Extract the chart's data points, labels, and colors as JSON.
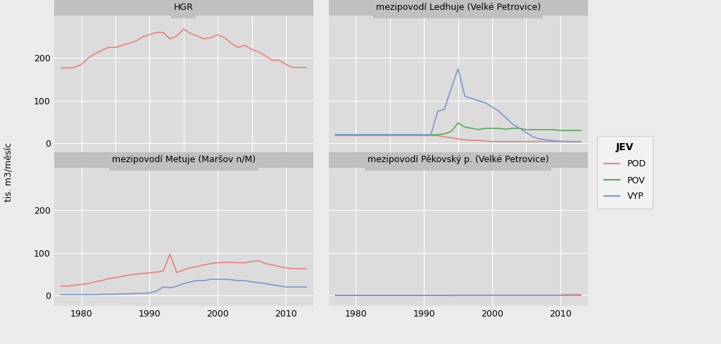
{
  "panel_titles": [
    "HGR",
    "mezipovodí Ledhuje (Velké Petrovice)",
    "mezipovodí Metuje (Maršov n/M)",
    "mezipovodí Pěkovský p. (Velké Petrovice)"
  ],
  "ylabel": "tis. m3/měsíc",
  "legend_title": "JEV",
  "legend_labels": [
    "POD",
    "POV",
    "VYP"
  ],
  "colors": {
    "POD": "#E88080",
    "POV": "#55AA55",
    "VYP": "#7799CC"
  },
  "bg_color": "#EBEBEB",
  "panel_bg": "#DCDCDC",
  "strip_bg": "#C0C0C0",
  "grid_color": "#FFFFFF",
  "xlim": [
    1976,
    2014
  ],
  "xticks": [
    1980,
    1990,
    2000,
    2010
  ],
  "panels": {
    "HGR": {
      "ylim": [
        -25,
        300
      ],
      "yticks": [
        0,
        100,
        200
      ],
      "POD": {
        "x": [
          1977,
          1978,
          1979,
          1980,
          1981,
          1982,
          1983,
          1984,
          1985,
          1986,
          1987,
          1988,
          1989,
          1990,
          1991,
          1992,
          1993,
          1994,
          1995,
          1996,
          1997,
          1998,
          1999,
          2000,
          2001,
          2002,
          2003,
          2004,
          2005,
          2006,
          2007,
          2008,
          2009,
          2010,
          2011,
          2012,
          2013
        ],
        "y": [
          177,
          177,
          178,
          185,
          200,
          210,
          218,
          225,
          225,
          230,
          235,
          240,
          250,
          255,
          260,
          260,
          245,
          252,
          268,
          258,
          252,
          245,
          248,
          255,
          248,
          235,
          225,
          230,
          220,
          215,
          205,
          195,
          195,
          185,
          178,
          178,
          178
        ]
      }
    },
    "Ledhuje": {
      "ylim": [
        -25,
        300
      ],
      "yticks": [
        0,
        100,
        200
      ],
      "POD": {
        "x": [
          1977,
          1978,
          1979,
          1980,
          1981,
          1982,
          1983,
          1984,
          1985,
          1986,
          1987,
          1988,
          1989,
          1990,
          1991,
          1992,
          1993,
          1994,
          1995,
          1996,
          1997,
          1998,
          1999,
          2000,
          2001,
          2002,
          2003,
          2004,
          2005,
          2006,
          2007,
          2008,
          2009,
          2010,
          2011,
          2012,
          2013
        ],
        "y": [
          18,
          18,
          18,
          18,
          18,
          18,
          18,
          18,
          18,
          18,
          18,
          18,
          18,
          18,
          18,
          18,
          15,
          13,
          10,
          8,
          7,
          7,
          5,
          4,
          4,
          4,
          4,
          4,
          4,
          4,
          4,
          4,
          4,
          4,
          4,
          4,
          4
        ]
      },
      "POV": {
        "x": [
          1977,
          1978,
          1979,
          1980,
          1981,
          1982,
          1983,
          1984,
          1985,
          1986,
          1987,
          1988,
          1989,
          1990,
          1991,
          1992,
          1993,
          1994,
          1995,
          1996,
          1997,
          1998,
          1999,
          2000,
          2001,
          2002,
          2003,
          2004,
          2005,
          2006,
          2007,
          2008,
          2009,
          2010,
          2011,
          2012,
          2013
        ],
        "y": [
          20,
          20,
          20,
          20,
          20,
          20,
          20,
          20,
          20,
          20,
          20,
          20,
          20,
          20,
          20,
          20,
          22,
          28,
          48,
          38,
          35,
          32,
          35,
          35,
          35,
          33,
          35,
          35,
          32,
          32,
          32,
          32,
          32,
          30,
          30,
          30,
          30
        ]
      },
      "VYP": {
        "x": [
          1977,
          1978,
          1979,
          1980,
          1981,
          1982,
          1983,
          1984,
          1985,
          1986,
          1987,
          1988,
          1989,
          1990,
          1991,
          1992,
          1993,
          1994,
          1995,
          1996,
          1997,
          1998,
          1999,
          2000,
          2001,
          2002,
          2003,
          2004,
          2005,
          2006,
          2007,
          2008,
          2009,
          2010,
          2011,
          2012,
          2013
        ],
        "y": [
          20,
          20,
          20,
          20,
          20,
          20,
          20,
          20,
          20,
          20,
          20,
          20,
          20,
          20,
          20,
          75,
          80,
          130,
          175,
          110,
          105,
          100,
          95,
          85,
          75,
          60,
          45,
          35,
          25,
          15,
          10,
          8,
          6,
          5,
          4,
          4,
          4
        ]
      }
    },
    "Metuje": {
      "ylim": [
        -25,
        300
      ],
      "yticks": [
        0,
        100,
        200
      ],
      "POD": {
        "x": [
          1977,
          1978,
          1979,
          1980,
          1981,
          1982,
          1983,
          1984,
          1985,
          1986,
          1987,
          1988,
          1989,
          1990,
          1991,
          1992,
          1993,
          1994,
          1995,
          1996,
          1997,
          1998,
          1999,
          2000,
          2001,
          2002,
          2003,
          2004,
          2005,
          2006,
          2007,
          2008,
          2009,
          2010,
          2011,
          2012,
          2013
        ],
        "y": [
          22,
          22,
          24,
          26,
          28,
          32,
          35,
          40,
          42,
          45,
          48,
          50,
          52,
          53,
          55,
          57,
          97,
          54,
          60,
          65,
          68,
          72,
          75,
          77,
          78,
          78,
          77,
          77,
          80,
          82,
          75,
          72,
          68,
          65,
          63,
          63,
          63
        ]
      },
      "VYP": {
        "x": [
          1977,
          1978,
          1979,
          1980,
          1981,
          1982,
          1983,
          1984,
          1985,
          1986,
          1987,
          1988,
          1989,
          1990,
          1991,
          1992,
          1993,
          1994,
          1995,
          1996,
          1997,
          1998,
          1999,
          2000,
          2001,
          2002,
          2003,
          2004,
          2005,
          2006,
          2007,
          2008,
          2009,
          2010,
          2011,
          2012,
          2013
        ],
        "y": [
          2,
          2,
          2,
          2,
          2,
          2,
          3,
          3,
          3,
          4,
          4,
          5,
          5,
          6,
          10,
          20,
          18,
          22,
          28,
          32,
          35,
          35,
          38,
          38,
          38,
          37,
          35,
          35,
          32,
          30,
          28,
          25,
          23,
          20,
          20,
          20,
          20
        ]
      }
    },
    "Pekovsky": {
      "ylim": [
        -25,
        300
      ],
      "yticks": [
        0,
        100,
        200
      ],
      "POD": {
        "x": [
          1977,
          1978,
          1979,
          1980,
          1981,
          1982,
          1983,
          1984,
          1985,
          1986,
          1987,
          1988,
          1989,
          1990,
          1991,
          1992,
          1993,
          1994,
          1995,
          1996,
          1997,
          1998,
          1999,
          2000,
          2001,
          2002,
          2003,
          2004,
          2005,
          2006,
          2007,
          2008,
          2009,
          2010,
          2011,
          2012,
          2013
        ],
        "y": [
          0.5,
          0.5,
          0.5,
          0.5,
          0.5,
          0.5,
          0.5,
          0.5,
          0.5,
          0.5,
          0.5,
          0.5,
          0.5,
          0.5,
          0.5,
          0.5,
          0.5,
          0.5,
          1,
          1,
          1,
          1,
          1,
          1,
          1,
          1,
          1,
          1,
          1,
          1,
          1,
          1,
          1,
          1,
          2,
          2,
          2
        ]
      },
      "VYP": {
        "x": [
          1977,
          1978,
          1979,
          1980,
          1981,
          1982,
          1983,
          1984,
          1985,
          1986,
          1987,
          1988,
          1989,
          1990,
          1991,
          1992,
          1993,
          1994,
          1995,
          1996,
          1997,
          1998,
          1999,
          2000,
          2001,
          2002,
          2003,
          2004,
          2005,
          2006,
          2007,
          2008,
          2009,
          2010,
          2011,
          2012,
          2013
        ],
        "y": [
          0.2,
          0.2,
          0.2,
          0.2,
          0.2,
          0.2,
          0.2,
          0.2,
          0.2,
          0.2,
          0.2,
          0.2,
          0.2,
          0.2,
          0.2,
          0.2,
          0.2,
          0.2,
          0.5,
          0.5,
          0.5,
          0.5,
          0.5,
          0.5,
          0.5,
          0.5,
          0.5,
          0.5,
          0.5,
          0.5,
          0.5,
          0.5,
          0.5,
          0.5,
          0.5,
          0.5,
          0.5
        ]
      }
    }
  }
}
